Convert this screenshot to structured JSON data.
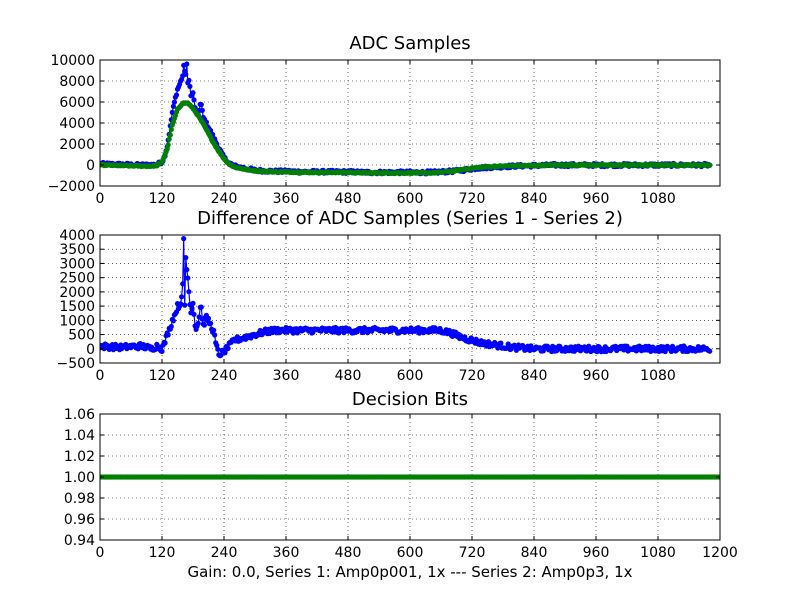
{
  "figure": {
    "footer_label": "Gain: 0.0, Series 1: Amp0p001, 1x --- Series 2: Amp0p3, 1x"
  },
  "colors": {
    "series_1": "#0000ff",
    "series_2": "#008000",
    "grid": "#000000",
    "axes": "#000000"
  },
  "chart_data": [
    {
      "type": "line",
      "title": "ADC Samples",
      "xlabel": "",
      "ylabel": "",
      "xlim": [
        0,
        1200
      ],
      "ylim": [
        -2000,
        10000
      ],
      "x_ticks": [
        "0",
        "120",
        "240",
        "360",
        "480",
        "600",
        "720",
        "840",
        "960",
        "1080"
      ],
      "x_tick_values": [
        0,
        120,
        240,
        360,
        480,
        600,
        720,
        840,
        960,
        1080
      ],
      "y_ticks": [
        "10000",
        "8000",
        "6000",
        "4000",
        "2000",
        "0",
        "−2000"
      ],
      "y_tick_values": [
        10000,
        8000,
        6000,
        4000,
        2000,
        0,
        -2000
      ],
      "grid": true,
      "series": [
        {
          "name": "Series 1",
          "color": "#0000ff",
          "marker": "dot",
          "x": [
            0,
            40,
            80,
            100,
            110,
            120,
            125,
            130,
            135,
            140,
            145,
            150,
            155,
            160,
            163,
            165,
            168,
            170,
            173,
            175,
            180,
            185,
            190,
            195,
            200,
            210,
            220,
            230,
            240,
            250,
            260,
            280,
            300,
            320,
            340,
            360,
            400,
            440,
            480,
            520,
            560,
            600,
            640,
            660,
            680,
            700,
            720,
            740,
            760,
            780,
            800,
            840,
            880,
            920,
            960,
            1000,
            1040,
            1080,
            1120,
            1160,
            1200
          ],
          "y": [
            100,
            50,
            0,
            0,
            50,
            300,
            800,
            1800,
            3300,
            5000,
            6200,
            7200,
            7800,
            8500,
            9800,
            8200,
            9500,
            7800,
            8400,
            6500,
            6800,
            5200,
            4800,
            6000,
            4500,
            3600,
            2600,
            1600,
            700,
            200,
            -100,
            -300,
            -500,
            -550,
            -600,
            -600,
            -650,
            -650,
            -650,
            -700,
            -700,
            -700,
            -700,
            -650,
            -600,
            -500,
            -350,
            -250,
            -200,
            -150,
            -100,
            -50,
            0,
            0,
            0,
            0,
            0,
            0,
            0,
            0,
            0
          ]
        },
        {
          "name": "Series 2",
          "color": "#008000",
          "marker": "dot",
          "x": [
            0,
            40,
            80,
            100,
            110,
            120,
            130,
            140,
            150,
            160,
            170,
            180,
            190,
            200,
            210,
            220,
            230,
            240,
            250,
            260,
            280,
            300,
            320,
            340,
            360,
            400,
            440,
            480,
            520,
            560,
            600,
            640,
            660,
            680,
            700,
            720,
            740,
            760,
            780,
            800,
            840,
            880,
            920,
            960,
            1000,
            1040,
            1080,
            1120,
            1160,
            1200
          ],
          "y": [
            0,
            -50,
            -100,
            -100,
            -50,
            300,
            1500,
            3800,
            5300,
            5900,
            5900,
            5400,
            4700,
            3900,
            3000,
            2100,
            1300,
            600,
            100,
            -200,
            -400,
            -550,
            -600,
            -650,
            -650,
            -700,
            -700,
            -700,
            -750,
            -750,
            -750,
            -750,
            -700,
            -600,
            -450,
            -300,
            -200,
            -150,
            -100,
            -80,
            -50,
            0,
            0,
            0,
            0,
            0,
            0,
            0,
            0,
            0
          ]
        }
      ]
    },
    {
      "type": "line",
      "title": "Difference of ADC Samples (Series 1 - Series 2)",
      "xlabel": "",
      "ylabel": "",
      "xlim": [
        0,
        1200
      ],
      "ylim": [
        -500,
        4000
      ],
      "x_ticks": [
        "0",
        "120",
        "240",
        "360",
        "480",
        "600",
        "720",
        "840",
        "960",
        "1080"
      ],
      "x_tick_values": [
        0,
        120,
        240,
        360,
        480,
        600,
        720,
        840,
        960,
        1080
      ],
      "y_ticks": [
        "4000",
        "3500",
        "3000",
        "2500",
        "2000",
        "1500",
        "1000",
        "500",
        "0",
        "−500"
      ],
      "y_tick_values": [
        4000,
        3500,
        3000,
        2500,
        2000,
        1500,
        1000,
        500,
        0,
        -500
      ],
      "grid": true,
      "series": [
        {
          "name": "Series 1 - Series 2",
          "color": "#0000ff",
          "marker": "dot",
          "x": [
            0,
            40,
            80,
            100,
            110,
            120,
            125,
            130,
            135,
            140,
            145,
            150,
            155,
            160,
            162,
            164,
            166,
            168,
            170,
            175,
            180,
            185,
            190,
            195,
            200,
            205,
            210,
            220,
            225,
            230,
            240,
            250,
            260,
            280,
            300,
            320,
            340,
            360,
            400,
            440,
            480,
            520,
            560,
            600,
            640,
            660,
            680,
            700,
            720,
            740,
            760,
            780,
            800,
            840,
            880,
            920,
            960,
            1000,
            1040,
            1080,
            1120,
            1160,
            1200
          ],
          "y": [
            100,
            50,
            100,
            0,
            100,
            0,
            200,
            500,
            700,
            1000,
            1200,
            1500,
            1500,
            2200,
            3800,
            1500,
            3200,
            2800,
            2500,
            1300,
            1600,
            700,
            900,
            1600,
            800,
            1100,
            1000,
            600,
            100,
            -200,
            -100,
            100,
            300,
            400,
            500,
            600,
            650,
            650,
            650,
            650,
            650,
            650,
            650,
            650,
            650,
            650,
            550,
            400,
            300,
            200,
            150,
            100,
            50,
            0,
            0,
            0,
            0,
            0,
            0,
            0,
            0,
            0,
            0
          ]
        }
      ]
    },
    {
      "type": "line",
      "title": "Decision Bits",
      "xlabel": "Gain: 0.0, Series 1: Amp0p001, 1x --- Series 2: Amp0p3, 1x",
      "ylabel": "",
      "xlim": [
        0,
        1200
      ],
      "ylim": [
        0.94,
        1.06
      ],
      "x_ticks": [
        "0",
        "120",
        "240",
        "360",
        "480",
        "600",
        "720",
        "840",
        "960",
        "1080",
        "1200"
      ],
      "x_tick_values": [
        0,
        120,
        240,
        360,
        480,
        600,
        720,
        840,
        960,
        1080,
        1200
      ],
      "y_ticks": [
        "1.06",
        "1.04",
        "1.02",
        "1.00",
        "0.98",
        "0.96",
        "0.94"
      ],
      "y_tick_values": [
        1.06,
        1.04,
        1.02,
        1.0,
        0.98,
        0.96,
        0.94
      ],
      "grid": true,
      "series": [
        {
          "name": "Decision Bits",
          "color": "#008000",
          "marker": "dot",
          "x": [
            0,
            1200
          ],
          "y": [
            1.0,
            1.0
          ]
        }
      ]
    }
  ]
}
